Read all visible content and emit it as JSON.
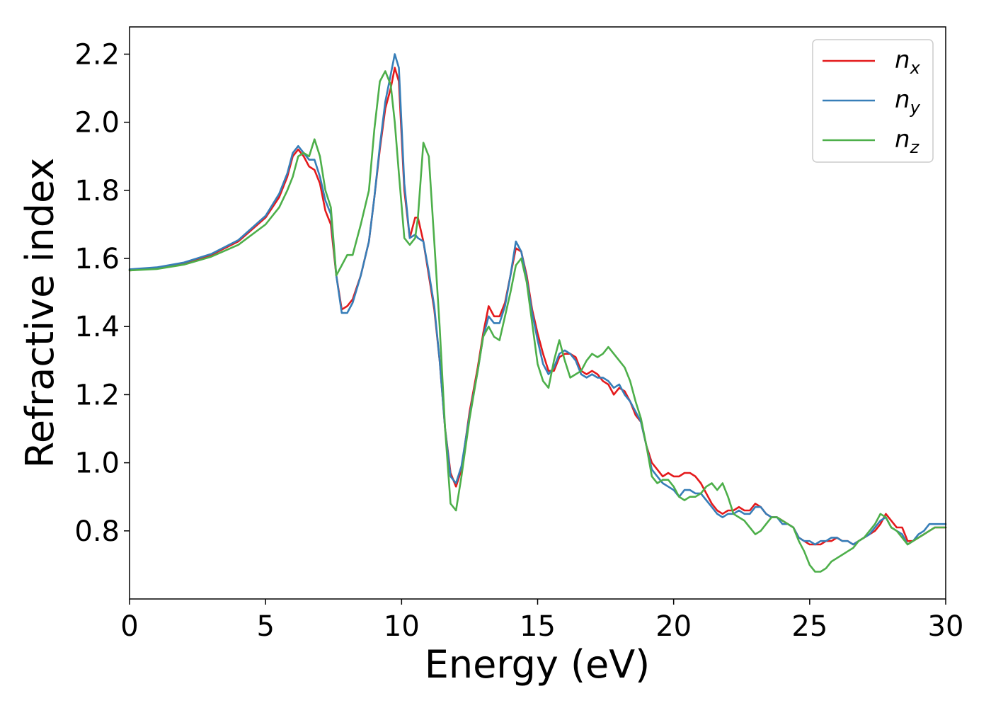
{
  "chart_data": {
    "type": "line",
    "title": "",
    "xlabel": "Energy (eV)",
    "ylabel": "Refractive index",
    "xlim": [
      0,
      30
    ],
    "ylim": [
      0.6,
      2.28
    ],
    "xticks": [
      0,
      5,
      10,
      15,
      20,
      25,
      30
    ],
    "xtick_labels": [
      "0",
      "5",
      "10",
      "15",
      "20",
      "25",
      "30"
    ],
    "yticks": [
      0.8,
      1.0,
      1.2,
      1.4,
      1.6,
      1.8,
      2.0,
      2.2
    ],
    "ytick_labels": [
      "0.8",
      "1.0",
      "1.2",
      "1.4",
      "1.6",
      "1.8",
      "2.0",
      "2.2"
    ],
    "grid": false,
    "legend_position": "top-right",
    "series": [
      {
        "name": "n_x",
        "label_base": "n",
        "label_sub": "x",
        "color": "#e41a1c",
        "x": [
          0,
          1,
          2,
          3,
          4,
          5,
          5.5,
          5.8,
          6.0,
          6.2,
          6.4,
          6.6,
          6.8,
          7.0,
          7.2,
          7.4,
          7.6,
          7.8,
          8.0,
          8.2,
          8.5,
          8.8,
          9.0,
          9.2,
          9.4,
          9.6,
          9.75,
          9.9,
          10.1,
          10.3,
          10.5,
          10.6,
          10.8,
          11.0,
          11.2,
          11.4,
          11.6,
          11.8,
          12.0,
          12.2,
          12.5,
          12.8,
          13.0,
          13.2,
          13.4,
          13.6,
          13.8,
          14.0,
          14.2,
          14.4,
          14.6,
          14.8,
          15.0,
          15.2,
          15.4,
          15.6,
          15.8,
          16.0,
          16.2,
          16.4,
          16.6,
          16.8,
          17.0,
          17.2,
          17.4,
          17.6,
          17.8,
          18.0,
          18.2,
          18.4,
          18.6,
          18.8,
          19.0,
          19.2,
          19.4,
          19.6,
          19.8,
          20.0,
          20.2,
          20.4,
          20.6,
          20.8,
          21.0,
          21.2,
          21.4,
          21.6,
          21.8,
          22.0,
          22.2,
          22.4,
          22.6,
          22.8,
          23.0,
          23.2,
          23.4,
          23.6,
          23.8,
          24.0,
          24.2,
          24.4,
          24.6,
          24.8,
          25.0,
          25.2,
          25.4,
          25.6,
          25.8,
          26.0,
          26.2,
          26.4,
          26.6,
          26.8,
          27.0,
          27.2,
          27.4,
          27.6,
          27.8,
          28.0,
          28.2,
          28.4,
          28.6,
          28.8,
          29.0,
          29.2,
          29.4,
          29.6,
          29.8,
          30.0
        ],
        "y": [
          1.565,
          1.571,
          1.585,
          1.61,
          1.65,
          1.72,
          1.78,
          1.84,
          1.9,
          1.92,
          1.9,
          1.87,
          1.86,
          1.82,
          1.74,
          1.7,
          1.55,
          1.45,
          1.46,
          1.48,
          1.55,
          1.65,
          1.78,
          1.92,
          2.04,
          2.1,
          2.16,
          2.12,
          1.8,
          1.66,
          1.72,
          1.72,
          1.65,
          1.55,
          1.45,
          1.3,
          1.1,
          0.97,
          0.93,
          0.98,
          1.15,
          1.28,
          1.38,
          1.46,
          1.43,
          1.43,
          1.47,
          1.55,
          1.63,
          1.62,
          1.55,
          1.45,
          1.38,
          1.32,
          1.27,
          1.27,
          1.31,
          1.32,
          1.32,
          1.31,
          1.27,
          1.26,
          1.27,
          1.26,
          1.24,
          1.23,
          1.2,
          1.22,
          1.21,
          1.18,
          1.14,
          1.12,
          1.05,
          1.0,
          0.98,
          0.96,
          0.97,
          0.96,
          0.96,
          0.97,
          0.97,
          0.96,
          0.94,
          0.91,
          0.88,
          0.86,
          0.85,
          0.86,
          0.86,
          0.87,
          0.86,
          0.86,
          0.88,
          0.87,
          0.85,
          0.84,
          0.84,
          0.83,
          0.82,
          0.81,
          0.78,
          0.77,
          0.76,
          0.76,
          0.76,
          0.77,
          0.77,
          0.78,
          0.77,
          0.77,
          0.76,
          0.77,
          0.78,
          0.79,
          0.8,
          0.82,
          0.85,
          0.83,
          0.81,
          0.81,
          0.77,
          0.77,
          0.78,
          0.79,
          0.8,
          0.81,
          0.81,
          0.81
        ]
      },
      {
        "name": "n_y",
        "label_base": "n",
        "label_sub": "y",
        "color": "#377eb8",
        "x": [
          0,
          1,
          2,
          3,
          4,
          5,
          5.5,
          5.8,
          6.0,
          6.2,
          6.4,
          6.6,
          6.8,
          7.0,
          7.2,
          7.4,
          7.6,
          7.8,
          8.0,
          8.2,
          8.5,
          8.8,
          9.0,
          9.2,
          9.4,
          9.6,
          9.75,
          9.9,
          10.1,
          10.3,
          10.5,
          10.6,
          10.8,
          11.0,
          11.2,
          11.4,
          11.6,
          11.8,
          12.0,
          12.2,
          12.5,
          12.8,
          13.0,
          13.2,
          13.4,
          13.6,
          13.8,
          14.0,
          14.2,
          14.4,
          14.6,
          14.8,
          15.0,
          15.2,
          15.4,
          15.6,
          15.8,
          16.0,
          16.2,
          16.4,
          16.6,
          16.8,
          17.0,
          17.2,
          17.4,
          17.6,
          17.8,
          18.0,
          18.2,
          18.4,
          18.6,
          18.8,
          19.0,
          19.2,
          19.4,
          19.6,
          19.8,
          20.0,
          20.2,
          20.4,
          20.6,
          20.8,
          21.0,
          21.2,
          21.4,
          21.6,
          21.8,
          22.0,
          22.2,
          22.4,
          22.6,
          22.8,
          23.0,
          23.2,
          23.4,
          23.6,
          23.8,
          24.0,
          24.2,
          24.4,
          24.6,
          24.8,
          25.0,
          25.2,
          25.4,
          25.6,
          25.8,
          26.0,
          26.2,
          26.4,
          26.6,
          26.8,
          27.0,
          27.2,
          27.4,
          27.6,
          27.8,
          28.0,
          28.2,
          28.4,
          28.6,
          28.8,
          29.0,
          29.2,
          29.4,
          29.6,
          29.8,
          30.0
        ],
        "y": [
          1.568,
          1.574,
          1.588,
          1.613,
          1.654,
          1.725,
          1.79,
          1.85,
          1.91,
          1.93,
          1.91,
          1.89,
          1.89,
          1.84,
          1.77,
          1.73,
          1.55,
          1.44,
          1.44,
          1.47,
          1.55,
          1.65,
          1.78,
          1.93,
          2.06,
          2.14,
          2.2,
          2.16,
          1.82,
          1.66,
          1.67,
          1.66,
          1.65,
          1.56,
          1.46,
          1.3,
          1.1,
          0.96,
          0.94,
          0.99,
          1.14,
          1.27,
          1.37,
          1.43,
          1.41,
          1.41,
          1.46,
          1.55,
          1.65,
          1.62,
          1.54,
          1.44,
          1.36,
          1.29,
          1.26,
          1.28,
          1.32,
          1.33,
          1.32,
          1.3,
          1.26,
          1.25,
          1.26,
          1.25,
          1.25,
          1.24,
          1.22,
          1.23,
          1.2,
          1.18,
          1.15,
          1.12,
          1.05,
          0.98,
          0.96,
          0.94,
          0.93,
          0.92,
          0.9,
          0.92,
          0.92,
          0.91,
          0.91,
          0.89,
          0.87,
          0.85,
          0.84,
          0.85,
          0.85,
          0.86,
          0.85,
          0.85,
          0.87,
          0.87,
          0.85,
          0.84,
          0.84,
          0.82,
          0.82,
          0.81,
          0.78,
          0.77,
          0.77,
          0.76,
          0.77,
          0.77,
          0.78,
          0.78,
          0.77,
          0.77,
          0.76,
          0.77,
          0.78,
          0.79,
          0.81,
          0.83,
          0.84,
          0.81,
          0.8,
          0.79,
          0.76,
          0.77,
          0.79,
          0.8,
          0.82,
          0.82,
          0.82,
          0.82
        ]
      },
      {
        "name": "n_z",
        "label_base": "n",
        "label_sub": "z",
        "color": "#4daf4a",
        "x": [
          0,
          1,
          2,
          3,
          4,
          5,
          5.5,
          5.8,
          6.0,
          6.2,
          6.4,
          6.6,
          6.8,
          7.0,
          7.2,
          7.4,
          7.6,
          7.8,
          8.0,
          8.2,
          8.5,
          8.8,
          9.0,
          9.2,
          9.4,
          9.6,
          9.75,
          9.9,
          10.1,
          10.3,
          10.5,
          10.6,
          10.8,
          11.0,
          11.2,
          11.4,
          11.6,
          11.8,
          12.0,
          12.2,
          12.5,
          12.8,
          13.0,
          13.2,
          13.4,
          13.6,
          13.8,
          14.0,
          14.2,
          14.4,
          14.6,
          14.8,
          15.0,
          15.2,
          15.4,
          15.6,
          15.8,
          16.0,
          16.2,
          16.4,
          16.6,
          16.8,
          17.0,
          17.2,
          17.4,
          17.6,
          17.8,
          18.0,
          18.2,
          18.4,
          18.6,
          18.8,
          19.0,
          19.2,
          19.4,
          19.6,
          19.8,
          20.0,
          20.2,
          20.4,
          20.6,
          20.8,
          21.0,
          21.2,
          21.4,
          21.6,
          21.8,
          22.0,
          22.2,
          22.4,
          22.6,
          22.8,
          23.0,
          23.2,
          23.4,
          23.6,
          23.8,
          24.0,
          24.2,
          24.4,
          24.6,
          24.8,
          25.0,
          25.2,
          25.4,
          25.6,
          25.8,
          26.0,
          26.2,
          26.4,
          26.6,
          26.8,
          27.0,
          27.2,
          27.4,
          27.6,
          27.8,
          28.0,
          28.2,
          28.4,
          28.6,
          28.8,
          29.0,
          29.2,
          29.4,
          29.6,
          29.8,
          30.0
        ],
        "y": [
          1.565,
          1.569,
          1.582,
          1.605,
          1.64,
          1.7,
          1.75,
          1.8,
          1.84,
          1.9,
          1.91,
          1.9,
          1.95,
          1.9,
          1.8,
          1.75,
          1.55,
          1.58,
          1.61,
          1.61,
          1.7,
          1.8,
          1.98,
          2.12,
          2.15,
          2.11,
          2.0,
          1.85,
          1.66,
          1.64,
          1.66,
          1.72,
          1.94,
          1.9,
          1.65,
          1.4,
          1.1,
          0.88,
          0.86,
          0.96,
          1.13,
          1.27,
          1.37,
          1.4,
          1.37,
          1.36,
          1.43,
          1.5,
          1.58,
          1.6,
          1.53,
          1.41,
          1.29,
          1.24,
          1.22,
          1.3,
          1.36,
          1.3,
          1.25,
          1.26,
          1.27,
          1.3,
          1.32,
          1.31,
          1.32,
          1.34,
          1.32,
          1.3,
          1.28,
          1.24,
          1.18,
          1.13,
          1.05,
          0.96,
          0.94,
          0.95,
          0.95,
          0.93,
          0.9,
          0.89,
          0.9,
          0.9,
          0.91,
          0.93,
          0.94,
          0.92,
          0.94,
          0.9,
          0.85,
          0.84,
          0.83,
          0.81,
          0.79,
          0.8,
          0.82,
          0.84,
          0.84,
          0.83,
          0.82,
          0.81,
          0.77,
          0.74,
          0.7,
          0.68,
          0.68,
          0.69,
          0.71,
          0.72,
          0.73,
          0.74,
          0.75,
          0.77,
          0.78,
          0.8,
          0.82,
          0.85,
          0.84,
          0.81,
          0.8,
          0.78,
          0.76,
          0.77,
          0.78,
          0.79,
          0.8,
          0.81,
          0.81,
          0.81
        ]
      }
    ]
  }
}
